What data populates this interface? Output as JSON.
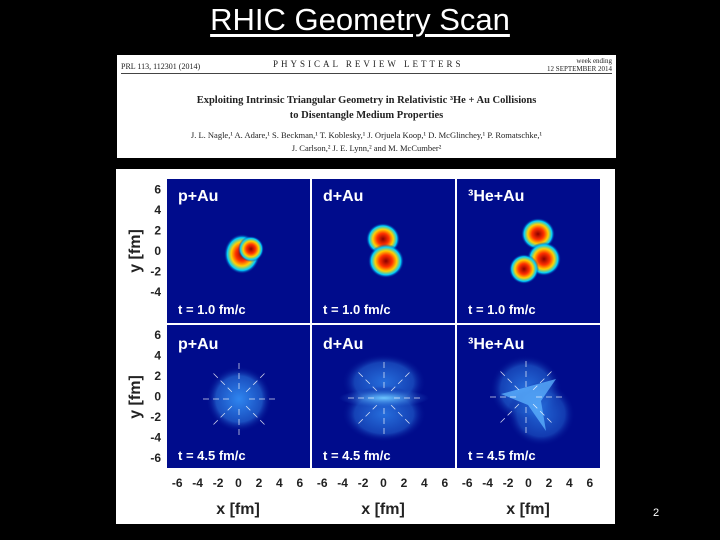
{
  "slide": {
    "title": "RHIC Geometry Scan",
    "page_number": "2"
  },
  "paper": {
    "citation": "PRL 113, 112301 (2014)",
    "journal": "PHYSICAL REVIEW LETTERS",
    "week_label": "week ending",
    "week_date": "12 SEPTEMBER 2014",
    "title_line1": "Exploiting Intrinsic Triangular Geometry in Relativistic ³He + Au Collisions",
    "title_line2": "to Disentangle Medium Properties",
    "authors_line1": "J. L. Nagle,¹ A. Adare,¹ S. Beckman,¹ T. Koblesky,¹ J. Orjuela Koop,¹ D. McGlinchey,¹ P. Romatschke,¹",
    "authors_line2": "J. Carlson,² J. E. Lynn,² and M. McCumber²"
  },
  "figure": {
    "y_label": "y [fm]",
    "x_label": "x [fm]",
    "ticks": [
      "-6",
      "-4",
      "-2",
      "0",
      "2",
      "4",
      "6"
    ],
    "panels": [
      {
        "system": "p+Au",
        "time": "t = 1.0 fm/c"
      },
      {
        "system": "d+Au",
        "time": "t = 1.0 fm/c"
      },
      {
        "system": "³He+Au",
        "time": "t = 1.0 fm/c"
      },
      {
        "system": "p+Au",
        "time": "t = 4.5 fm/c"
      },
      {
        "system": "d+Au",
        "time": "t = 4.5 fm/c"
      },
      {
        "system": "³He+Au",
        "time": "t = 4.5 fm/c"
      }
    ],
    "colors": {
      "background": "#000c8c",
      "hot_core": "#8a0000",
      "hot_mid": "#ff3000",
      "warm": "#ffd000",
      "cool": "#00d0ff",
      "expanded": "#2f76e0"
    }
  }
}
